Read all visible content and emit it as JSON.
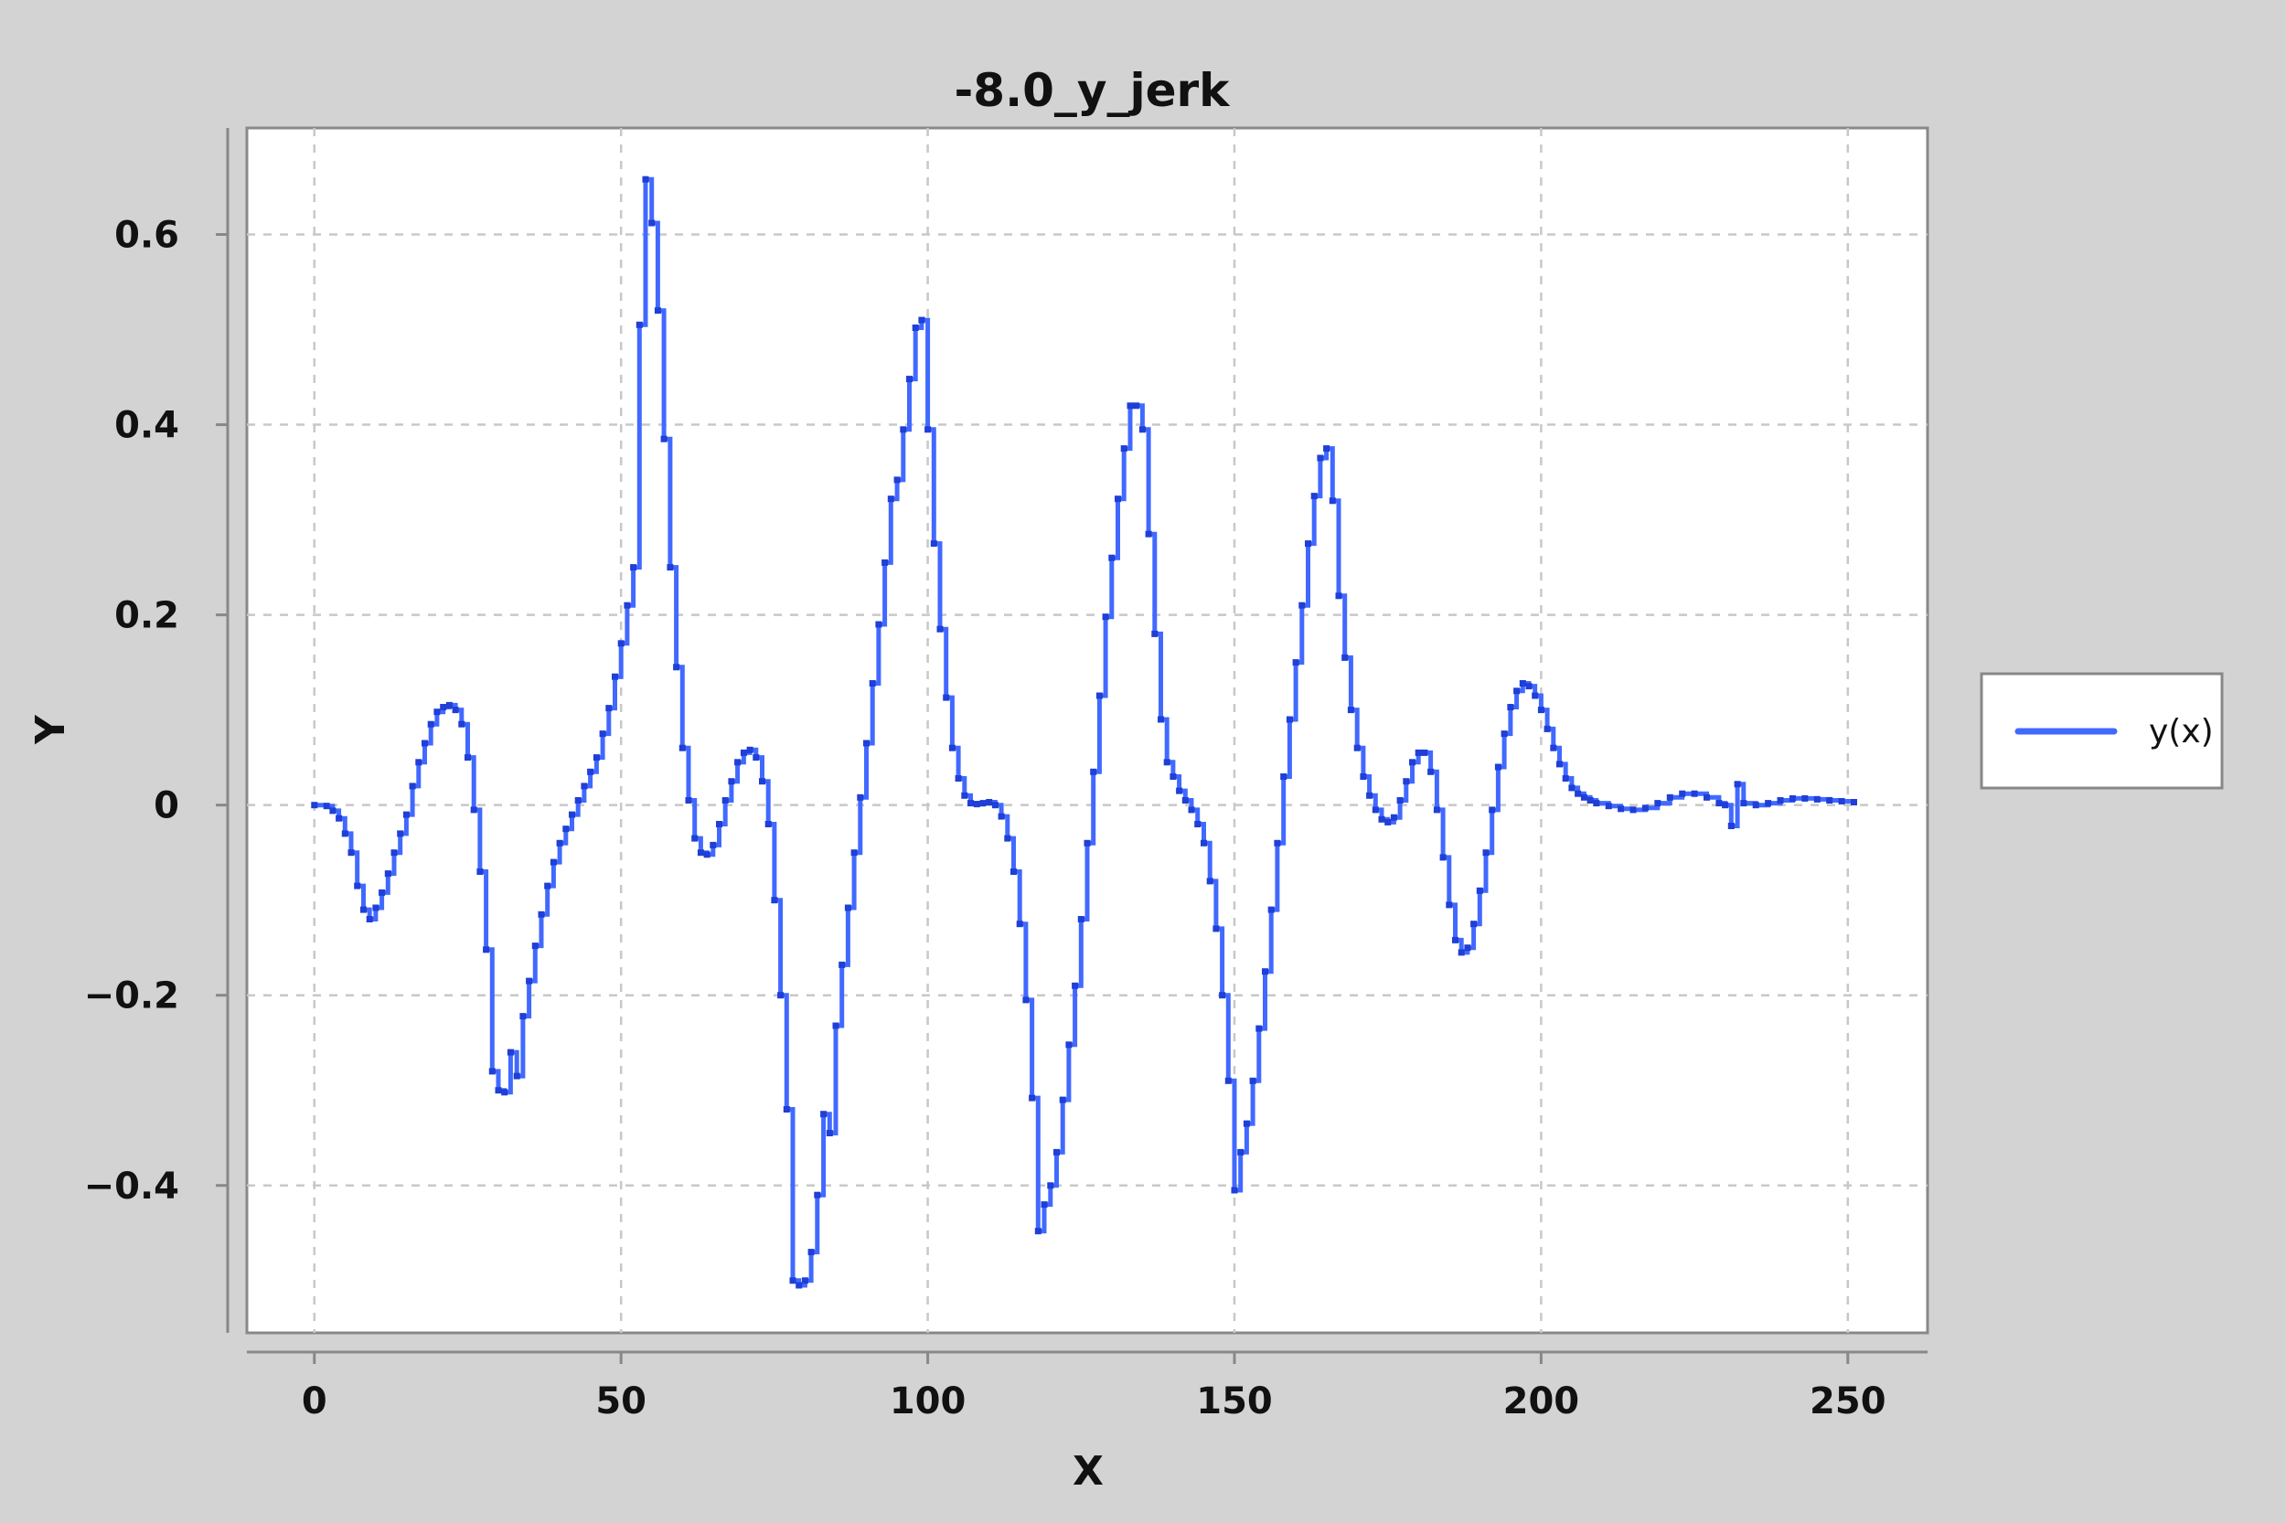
{
  "chart_data": {
    "type": "line",
    "title": "-8.0_y_jerk",
    "xlabel": "X",
    "ylabel": "Y",
    "xlim": [
      -11,
      263
    ],
    "ylim": [
      -0.555,
      0.712
    ],
    "x_ticks": [
      0,
      50,
      100,
      150,
      200,
      250
    ],
    "x_tick_labels": [
      "0",
      "50",
      "100",
      "150",
      "200",
      "250"
    ],
    "y_ticks": [
      -0.4,
      -0.2,
      0,
      0.2,
      0.4,
      0.6
    ],
    "y_tick_labels": [
      "−0.4",
      "−0.2",
      "0",
      "0.2",
      "0.4",
      "0.6"
    ],
    "grid": true,
    "legend_position": "right",
    "step": true,
    "series": [
      {
        "name": "y(x)",
        "color": "#4169ff",
        "points": [
          [
            0,
            0.0
          ],
          [
            2,
            -0.001
          ],
          [
            3,
            -0.006
          ],
          [
            4,
            -0.014
          ],
          [
            5,
            -0.03
          ],
          [
            6,
            -0.05
          ],
          [
            7,
            -0.085
          ],
          [
            8,
            -0.11
          ],
          [
            9,
            -0.12
          ],
          [
            10,
            -0.108
          ],
          [
            11,
            -0.092
          ],
          [
            12,
            -0.072
          ],
          [
            13,
            -0.05
          ],
          [
            14,
            -0.03
          ],
          [
            15,
            -0.01
          ],
          [
            16,
            0.02
          ],
          [
            17,
            0.045
          ],
          [
            18,
            0.065
          ],
          [
            19,
            0.085
          ],
          [
            20,
            0.098
          ],
          [
            21,
            0.103
          ],
          [
            22,
            0.105
          ],
          [
            23,
            0.1
          ],
          [
            24,
            0.085
          ],
          [
            25,
            0.05
          ],
          [
            26,
            -0.005
          ],
          [
            27,
            -0.07
          ],
          [
            28,
            -0.152
          ],
          [
            29,
            -0.28
          ],
          [
            30,
            -0.3
          ],
          [
            31,
            -0.302
          ],
          [
            32,
            -0.26
          ],
          [
            33,
            -0.285
          ],
          [
            34,
            -0.222
          ],
          [
            35,
            -0.185
          ],
          [
            36,
            -0.148
          ],
          [
            37,
            -0.115
          ],
          [
            38,
            -0.085
          ],
          [
            39,
            -0.06
          ],
          [
            40,
            -0.04
          ],
          [
            41,
            -0.025
          ],
          [
            42,
            -0.01
          ],
          [
            43,
            0.005
          ],
          [
            44,
            0.02
          ],
          [
            45,
            0.035
          ],
          [
            46,
            0.05
          ],
          [
            47,
            0.075
          ],
          [
            48,
            0.102
          ],
          [
            49,
            0.135
          ],
          [
            50,
            0.17
          ],
          [
            51,
            0.21
          ],
          [
            52,
            0.25
          ],
          [
            53,
            0.505
          ],
          [
            54,
            0.658
          ],
          [
            55,
            0.612
          ],
          [
            56,
            0.52
          ],
          [
            57,
            0.385
          ],
          [
            58,
            0.25
          ],
          [
            59,
            0.145
          ],
          [
            60,
            0.06
          ],
          [
            61,
            0.005
          ],
          [
            62,
            -0.035
          ],
          [
            63,
            -0.05
          ],
          [
            64,
            -0.052
          ],
          [
            65,
            -0.042
          ],
          [
            66,
            -0.02
          ],
          [
            67,
            0.005
          ],
          [
            68,
            0.025
          ],
          [
            69,
            0.045
          ],
          [
            70,
            0.055
          ],
          [
            71,
            0.058
          ],
          [
            72,
            0.05
          ],
          [
            73,
            0.025
          ],
          [
            74,
            -0.02
          ],
          [
            75,
            -0.1
          ],
          [
            76,
            -0.2
          ],
          [
            77,
            -0.32
          ],
          [
            78,
            -0.5
          ],
          [
            79,
            -0.505
          ],
          [
            80,
            -0.5
          ],
          [
            81,
            -0.47
          ],
          [
            82,
            -0.41
          ],
          [
            83,
            -0.325
          ],
          [
            84,
            -0.345
          ],
          [
            85,
            -0.232
          ],
          [
            86,
            -0.168
          ],
          [
            87,
            -0.108
          ],
          [
            88,
            -0.05
          ],
          [
            89,
            0.008
          ],
          [
            90,
            0.065
          ],
          [
            91,
            0.128
          ],
          [
            92,
            0.19
          ],
          [
            93,
            0.255
          ],
          [
            94,
            0.322
          ],
          [
            95,
            0.342
          ],
          [
            96,
            0.395
          ],
          [
            97,
            0.448
          ],
          [
            98,
            0.502
          ],
          [
            99,
            0.51
          ],
          [
            100,
            0.395
          ],
          [
            101,
            0.275
          ],
          [
            102,
            0.185
          ],
          [
            103,
            0.113
          ],
          [
            104,
            0.06
          ],
          [
            105,
            0.028
          ],
          [
            106,
            0.01
          ],
          [
            107,
            0.002
          ],
          [
            108,
            0.001
          ],
          [
            109,
            0.002
          ],
          [
            110,
            0.003
          ],
          [
            111,
            0.0
          ],
          [
            112,
            -0.012
          ],
          [
            113,
            -0.035
          ],
          [
            114,
            -0.07
          ],
          [
            115,
            -0.125
          ],
          [
            116,
            -0.205
          ],
          [
            117,
            -0.308
          ],
          [
            118,
            -0.448
          ],
          [
            119,
            -0.42
          ],
          [
            120,
            -0.4
          ],
          [
            121,
            -0.365
          ],
          [
            122,
            -0.31
          ],
          [
            123,
            -0.252
          ],
          [
            124,
            -0.19
          ],
          [
            125,
            -0.12
          ],
          [
            126,
            -0.04
          ],
          [
            127,
            0.035
          ],
          [
            128,
            0.115
          ],
          [
            129,
            0.198
          ],
          [
            130,
            0.26
          ],
          [
            131,
            0.322
          ],
          [
            132,
            0.375
          ],
          [
            133,
            0.42
          ],
          [
            134,
            0.42
          ],
          [
            135,
            0.395
          ],
          [
            136,
            0.285
          ],
          [
            137,
            0.18
          ],
          [
            138,
            0.09
          ],
          [
            139,
            0.045
          ],
          [
            140,
            0.03
          ],
          [
            141,
            0.015
          ],
          [
            142,
            0.005
          ],
          [
            143,
            -0.005
          ],
          [
            144,
            -0.02
          ],
          [
            145,
            -0.04
          ],
          [
            146,
            -0.08
          ],
          [
            147,
            -0.13
          ],
          [
            148,
            -0.2
          ],
          [
            149,
            -0.29
          ],
          [
            150,
            -0.405
          ],
          [
            151,
            -0.365
          ],
          [
            152,
            -0.335
          ],
          [
            153,
            -0.29
          ],
          [
            154,
            -0.235
          ],
          [
            155,
            -0.175
          ],
          [
            156,
            -0.11
          ],
          [
            157,
            -0.04
          ],
          [
            158,
            0.03
          ],
          [
            159,
            0.09
          ],
          [
            160,
            0.15
          ],
          [
            161,
            0.21
          ],
          [
            162,
            0.275
          ],
          [
            163,
            0.325
          ],
          [
            164,
            0.365
          ],
          [
            165,
            0.375
          ],
          [
            166,
            0.32
          ],
          [
            167,
            0.22
          ],
          [
            168,
            0.155
          ],
          [
            169,
            0.1
          ],
          [
            170,
            0.06
          ],
          [
            171,
            0.03
          ],
          [
            172,
            0.01
          ],
          [
            173,
            -0.005
          ],
          [
            174,
            -0.015
          ],
          [
            175,
            -0.018
          ],
          [
            176,
            -0.013
          ],
          [
            177,
            0.005
          ],
          [
            178,
            0.025
          ],
          [
            179,
            0.045
          ],
          [
            180,
            0.055
          ],
          [
            181,
            0.055
          ],
          [
            182,
            0.035
          ],
          [
            183,
            -0.005
          ],
          [
            184,
            -0.055
          ],
          [
            185,
            -0.105
          ],
          [
            186,
            -0.142
          ],
          [
            187,
            -0.155
          ],
          [
            188,
            -0.15
          ],
          [
            189,
            -0.125
          ],
          [
            190,
            -0.09
          ],
          [
            191,
            -0.05
          ],
          [
            192,
            -0.005
          ],
          [
            193,
            0.04
          ],
          [
            194,
            0.075
          ],
          [
            195,
            0.103
          ],
          [
            196,
            0.12
          ],
          [
            197,
            0.128
          ],
          [
            198,
            0.125
          ],
          [
            199,
            0.115
          ],
          [
            200,
            0.1
          ],
          [
            201,
            0.08
          ],
          [
            202,
            0.06
          ],
          [
            203,
            0.043
          ],
          [
            204,
            0.028
          ],
          [
            205,
            0.018
          ],
          [
            206,
            0.012
          ],
          [
            207,
            0.008
          ],
          [
            208,
            0.005
          ],
          [
            209,
            0.002
          ],
          [
            211,
            -0.001
          ],
          [
            213,
            -0.004
          ],
          [
            215,
            -0.005
          ],
          [
            217,
            -0.003
          ],
          [
            219,
            0.002
          ],
          [
            221,
            0.008
          ],
          [
            223,
            0.012
          ],
          [
            225,
            0.012
          ],
          [
            227,
            0.008
          ],
          [
            229,
            0.002
          ],
          [
            230,
            0.0
          ],
          [
            231,
            -0.022
          ],
          [
            232,
            0.022
          ],
          [
            233,
            0.002
          ],
          [
            235,
            0.0
          ],
          [
            237,
            0.002
          ],
          [
            239,
            0.005
          ],
          [
            241,
            0.007
          ],
          [
            243,
            0.007
          ],
          [
            245,
            0.006
          ],
          [
            247,
            0.005
          ],
          [
            249,
            0.004
          ],
          [
            251,
            0.003
          ]
        ]
      }
    ]
  }
}
